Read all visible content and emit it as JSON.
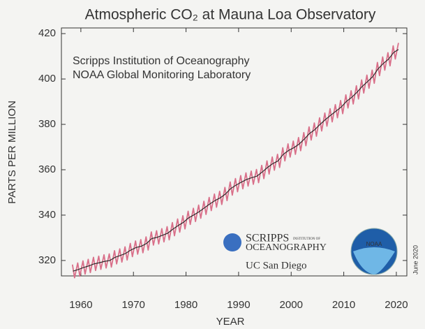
{
  "chart_data": {
    "type": "line",
    "title": "Atmospheric CO₂ at Mauna Loa Observatory",
    "y_label": "PARTS PER MILLION",
    "x_label": "YEAR",
    "annotations": [
      "Scripps Institution of Oceanography",
      "NOAA Global Monitoring Laboratory",
      "June 2020"
    ],
    "logos": {
      "scripps": "SCRIPPS",
      "scripps_small": "INSTITUTION OF",
      "oceanography": "OCEANOGRAPHY",
      "ucsd": "UC San Diego",
      "noaa": "NOAA"
    },
    "xlim": [
      1956.3,
      2022
    ],
    "ylim": [
      313.2,
      422.5
    ],
    "xticks": [
      1960,
      1970,
      1980,
      1990,
      2000,
      2010,
      2020
    ],
    "yticks": [
      320,
      340,
      360,
      380,
      400,
      420
    ],
    "series": [
      {
        "color": "#d9708a",
        "x": [
          1958.4,
          1958.8,
          1959.4,
          1959.8,
          1960.4,
          1960.8,
          1961.4,
          1961.8,
          1962.4,
          1962.8,
          1963.4,
          1963.8,
          1964.4,
          1964.8,
          1965.4,
          1965.8,
          1966.4,
          1966.8,
          1967.4,
          1967.8,
          1968.4,
          1968.8,
          1969.4,
          1969.8,
          1970.4,
          1970.8,
          1971.4,
          1971.8,
          1972.4,
          1972.8,
          1973.4,
          1973.8,
          1974.4,
          1974.8,
          1975.4,
          1975.8,
          1976.4,
          1976.8,
          1977.4,
          1977.8,
          1978.4,
          1978.8,
          1979.4,
          1979.8,
          1980.4,
          1980.8,
          1981.4,
          1981.8,
          1982.4,
          1982.8,
          1983.4,
          1983.8,
          1984.4,
          1984.8,
          1985.4,
          1985.8,
          1986.4,
          1986.8,
          1987.4,
          1987.8,
          1988.4,
          1988.8,
          1989.4,
          1989.8,
          1990.4,
          1990.8,
          1991.4,
          1991.8,
          1992.4,
          1992.8,
          1993.4,
          1993.8,
          1994.4,
          1994.8,
          1995.4,
          1995.8,
          1996.4,
          1996.8,
          1997.4,
          1997.8,
          1998.4,
          1998.8,
          1999.4,
          1999.8,
          2000.4,
          2000.8,
          2001.4,
          2001.8,
          2002.4,
          2002.8,
          2003.4,
          2003.8,
          2004.4,
          2004.8,
          2005.4,
          2005.8,
          2006.4,
          2006.8,
          2007.4,
          2007.8,
          2008.4,
          2008.8,
          2009.4,
          2009.8,
          2010.4,
          2010.8,
          2011.4,
          2011.8,
          2012.4,
          2012.8,
          2013.4,
          2013.8,
          2014.4,
          2014.8,
          2015.4,
          2015.8,
          2016.4,
          2016.8,
          2017.4,
          2017.8,
          2018.4,
          2018.8,
          2019.4,
          2019.8,
          2020.4
        ],
        "values": [
          318.2,
          312.4,
          318.9,
          313.1,
          319.8,
          314.0,
          320.5,
          314.7,
          321.4,
          315.6,
          321.9,
          316.1,
          322.5,
          316.7,
          322.9,
          317.1,
          324.3,
          318.5,
          325.1,
          319.3,
          326.0,
          320.2,
          327.5,
          321.7,
          328.6,
          322.8,
          329.2,
          323.4,
          330.4,
          324.6,
          332.6,
          326.8,
          333.1,
          327.3,
          334.0,
          328.2,
          334.9,
          329.1,
          336.7,
          330.9,
          338.3,
          332.5,
          339.7,
          333.9,
          341.7,
          335.9,
          343.0,
          337.2,
          344.4,
          338.6,
          346.1,
          340.3,
          347.8,
          342.0,
          349.3,
          343.5,
          350.5,
          344.7,
          352.2,
          346.4,
          354.6,
          348.8,
          356.1,
          350.3,
          357.4,
          351.6,
          358.6,
          352.8,
          359.4,
          353.6,
          360.1,
          354.3,
          361.9,
          356.1,
          363.9,
          358.1,
          365.6,
          359.8,
          366.8,
          361.0,
          369.7,
          363.9,
          371.4,
          365.6,
          372.6,
          366.8,
          374.2,
          368.4,
          376.4,
          370.6,
          378.9,
          373.1,
          380.6,
          374.8,
          382.9,
          377.1,
          385.0,
          379.2,
          386.9,
          381.1,
          388.7,
          382.9,
          390.5,
          384.7,
          393.0,
          387.2,
          394.8,
          389.0,
          397.0,
          391.2,
          399.6,
          393.8,
          401.7,
          395.9,
          403.9,
          398.1,
          407.3,
          401.5,
          409.7,
          403.9,
          411.6,
          405.8,
          414.6,
          408.8,
          415.9
        ]
      },
      {
        "color": "#222222",
        "x": [
          1958.5,
          1959.5,
          1960.5,
          1961.5,
          1962.5,
          1963.5,
          1964.5,
          1965.5,
          1966.5,
          1967.5,
          1968.5,
          1969.5,
          1970.5,
          1971.5,
          1972.5,
          1973.5,
          1974.5,
          1975.5,
          1976.5,
          1977.5,
          1978.5,
          1979.5,
          1980.5,
          1981.5,
          1982.5,
          1983.5,
          1984.5,
          1985.5,
          1986.5,
          1987.5,
          1988.5,
          1989.5,
          1990.5,
          1991.5,
          1992.5,
          1993.5,
          1994.5,
          1995.5,
          1996.5,
          1997.5,
          1998.5,
          1999.5,
          2000.5,
          2001.5,
          2002.5,
          2003.5,
          2004.5,
          2005.5,
          2006.5,
          2007.5,
          2008.5,
          2009.5,
          2010.5,
          2011.5,
          2012.5,
          2013.5,
          2014.5,
          2015.5,
          2016.5,
          2017.5,
          2018.5,
          2019.5,
          2020.4
        ],
        "values": [
          315.3,
          316.0,
          316.9,
          317.6,
          318.5,
          319.0,
          319.6,
          320.0,
          321.4,
          322.2,
          323.1,
          324.6,
          325.7,
          326.3,
          327.5,
          329.7,
          330.2,
          331.1,
          332.0,
          333.8,
          335.4,
          336.8,
          338.8,
          340.1,
          341.5,
          343.2,
          344.9,
          346.4,
          347.6,
          349.3,
          351.7,
          353.2,
          354.5,
          355.7,
          356.5,
          357.2,
          359.0,
          361.0,
          362.7,
          363.9,
          366.8,
          368.5,
          369.7,
          371.3,
          373.5,
          376.0,
          377.7,
          380.0,
          382.1,
          384.0,
          385.8,
          387.6,
          390.1,
          391.9,
          394.1,
          396.7,
          398.8,
          401.0,
          404.4,
          406.8,
          408.7,
          411.7,
          413.0
        ]
      }
    ]
  }
}
